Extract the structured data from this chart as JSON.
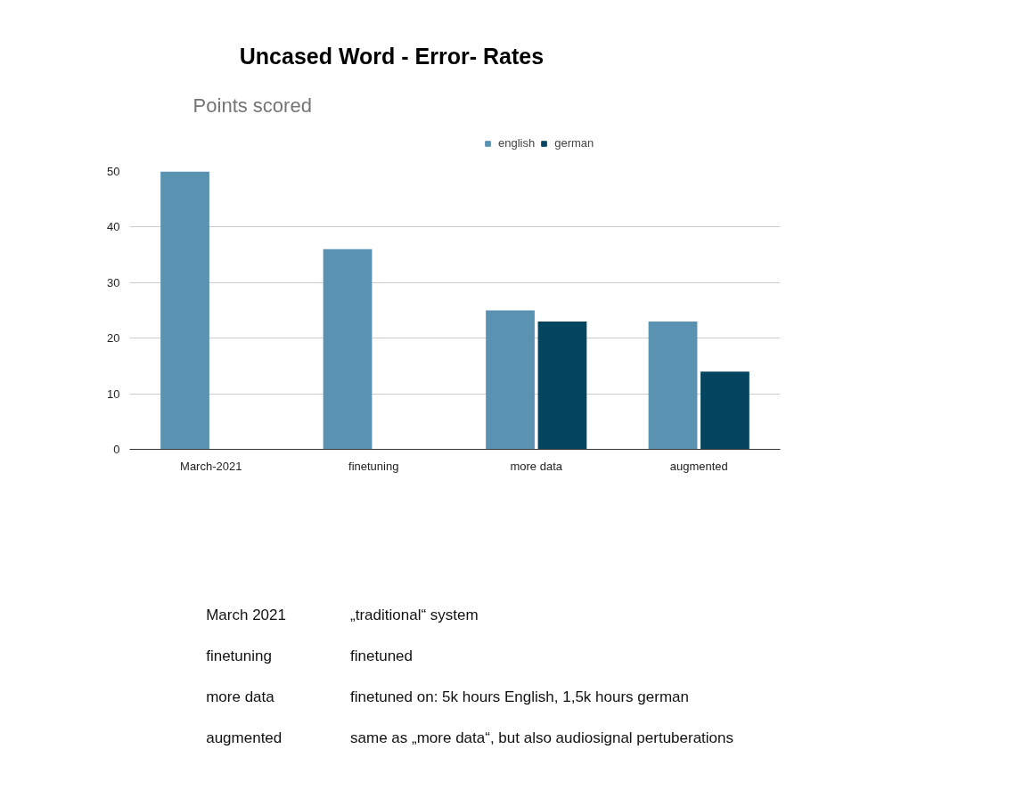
{
  "chart_data": {
    "type": "bar",
    "title": "Uncased Word - Error- Rates",
    "subtitle": "Points scored",
    "categories": [
      "March-2021",
      "finetuning",
      "more data",
      "augmented"
    ],
    "series": [
      {
        "name": "english",
        "color": "#5a92b1",
        "values": [
          50,
          36,
          25,
          23
        ]
      },
      {
        "name": "german",
        "color": "#064560",
        "values": [
          null,
          null,
          23,
          14
        ]
      }
    ],
    "ylim": [
      0,
      50
    ],
    "yticks": [
      0,
      10,
      20,
      30,
      40,
      50
    ],
    "grid": "y",
    "legend": "top",
    "annotations": [
      "March 2021",
      "„traditional“ system",
      "finetuning",
      "finetuned",
      "more data",
      "finetuned on: 5k hours English, 1,5k hours german",
      "augmented",
      "same as „more data“, but also audiosignal pertuberations"
    ]
  }
}
